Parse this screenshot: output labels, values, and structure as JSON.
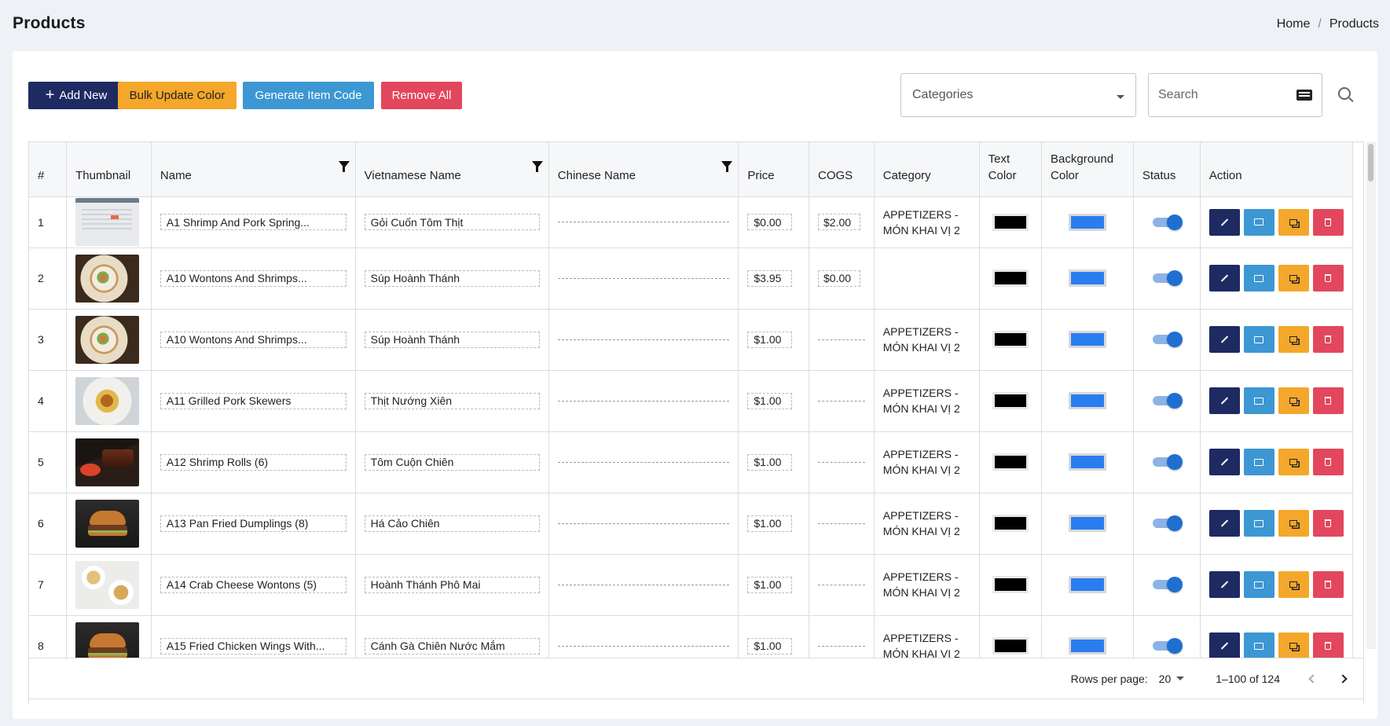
{
  "header": {
    "title": "Products",
    "breadcrumb": [
      "Home",
      "Products"
    ]
  },
  "toolbar": {
    "add_new": "Add New",
    "bulk_update_color": "Bulk Update Color",
    "generate_item_code": "Generate Item Code",
    "remove_all": "Remove All",
    "categories_placeholder": "Categories",
    "search_placeholder": "Search"
  },
  "colors": {
    "primary": "#1e2a62",
    "warning": "#f4a72b",
    "info": "#3c97d3",
    "danger": "#e2475d",
    "toggle": "#1f6fd1",
    "bg_swatch": "#2a7df0",
    "text_swatch": "#000000"
  },
  "table": {
    "columns": {
      "index": "#",
      "thumbnail": "Thumbnail",
      "name": "Name",
      "vietnamese_name": "Vietnamese Name",
      "chinese_name": "Chinese Name",
      "price": "Price",
      "cogs": "COGS",
      "category": "Category",
      "text_color": "Text Color",
      "background_color": "Background Color",
      "status": "Status",
      "action": "Action"
    },
    "rows": [
      {
        "index": "1",
        "thumb": "screen",
        "name": "A1 Shrimp And Pork Spring...",
        "vietnamese_name": "Gỏi Cuốn Tôm Thịt",
        "price": "$0.00",
        "cogs": "$2.00",
        "category": "APPETIZERS - MÓN KHAI VỊ 2",
        "text_color": "#000000",
        "background_color": "#2a7df0",
        "status": true
      },
      {
        "index": "2",
        "thumb": "pasta",
        "name": "A10 Wontons And Shrimps...",
        "vietnamese_name": "Súp Hoành Thánh",
        "price": "$3.95",
        "cogs": "$0.00",
        "category": "",
        "text_color": "#000000",
        "background_color": "#2a7df0",
        "status": true
      },
      {
        "index": "3",
        "thumb": "pasta",
        "name": "A10 Wontons And Shrimps...",
        "vietnamese_name": "Súp Hoành Thánh",
        "price": "$1.00",
        "cogs": "",
        "category": "APPETIZERS - MÓN KHAI VỊ 2",
        "text_color": "#000000",
        "background_color": "#2a7df0",
        "status": true
      },
      {
        "index": "4",
        "thumb": "soup",
        "name": "A11 Grilled Pork Skewers",
        "vietnamese_name": "Thịt Nướng Xiên",
        "price": "$1.00",
        "cogs": "",
        "category": "APPETIZERS - MÓN KHAI VỊ 2",
        "text_color": "#000000",
        "background_color": "#2a7df0",
        "status": true
      },
      {
        "index": "5",
        "thumb": "ribs",
        "name": "A12 Shrimp Rolls (6)",
        "vietnamese_name": "Tôm Cuộn Chiên",
        "price": "$1.00",
        "cogs": "",
        "category": "APPETIZERS - MÓN KHAI VỊ 2",
        "text_color": "#000000",
        "background_color": "#2a7df0",
        "status": true
      },
      {
        "index": "6",
        "thumb": "burger",
        "name": "A13 Pan Fried Dumplings (8)",
        "vietnamese_name": "Há Cảo Chiên",
        "price": "$1.00",
        "cogs": "",
        "category": "APPETIZERS - MÓN KHAI VỊ 2",
        "text_color": "#000000",
        "background_color": "#2a7df0",
        "status": true
      },
      {
        "index": "7",
        "thumb": "platter",
        "name": "A14 Crab Cheese Wontons (5)",
        "vietnamese_name": "Hoành Thánh Phô Mai",
        "price": "$1.00",
        "cogs": "",
        "category": "APPETIZERS - MÓN KHAI VỊ 2",
        "text_color": "#000000",
        "background_color": "#2a7df0",
        "status": true
      },
      {
        "index": "8",
        "thumb": "burger",
        "name": "A15 Fried Chicken Wings With...",
        "vietnamese_name": "Cánh Gà Chiên Nước Mắm",
        "price": "$1.00",
        "cogs": "",
        "category": "APPETIZERS - MÓN KHAI VỊ 2",
        "text_color": "#000000",
        "background_color": "#2a7df0",
        "status": true
      }
    ]
  },
  "pagination": {
    "rows_per_page_label": "Rows per page:",
    "rows_per_page": "20",
    "range": "1–100 of 124"
  }
}
